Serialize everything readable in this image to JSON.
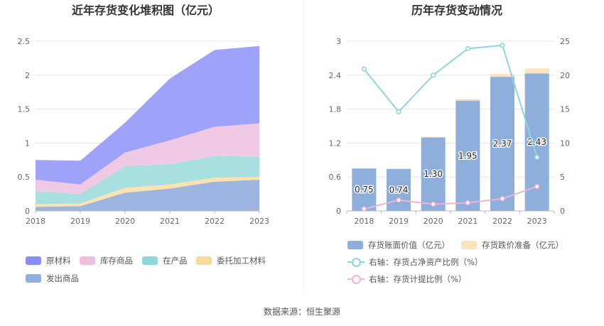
{
  "source": "数据来源：恒生聚源",
  "chart_data": [
    {
      "type": "area",
      "stacked": true,
      "title": "近年存货变化堆积图（亿元）",
      "categories": [
        "2018",
        "2019",
        "2020",
        "2021",
        "2022",
        "2023"
      ],
      "y_ticks": [
        "0",
        "0.5",
        "1",
        "1.5",
        "2",
        "2.5"
      ],
      "ylim": [
        0,
        2.5
      ],
      "grid": true,
      "legend_position": "bottom",
      "series": [
        {
          "name": "发出商品",
          "color": "#9bb5e0",
          "values": [
            0.06,
            0.07,
            0.27,
            0.33,
            0.43,
            0.46
          ]
        },
        {
          "name": "委托加工材料",
          "color": "#fde2b0",
          "values": [
            0.04,
            0.04,
            0.07,
            0.06,
            0.06,
            0.04
          ]
        },
        {
          "name": "在产品",
          "color": "#a8e0e0",
          "values": [
            0.19,
            0.14,
            0.32,
            0.3,
            0.32,
            0.3
          ]
        },
        {
          "name": "库存商品",
          "color": "#f0c9e4",
          "values": [
            0.17,
            0.14,
            0.2,
            0.35,
            0.43,
            0.49
          ]
        },
        {
          "name": "原材料",
          "color": "#9ea2f8",
          "values": [
            0.29,
            0.35,
            0.44,
            0.91,
            1.13,
            1.14
          ]
        }
      ],
      "legend_order": [
        "原材料",
        "库存商品",
        "在产品",
        "委托加工材料",
        "发出商品"
      ],
      "legend_colors": {
        "原材料": "#8a8cf7",
        "库存商品": "#f0bfe0",
        "在产品": "#8fd6d6",
        "委托加工材料": "#fcd99a",
        "发出商品": "#8fb0dc"
      }
    },
    {
      "type": "bar",
      "title": "历年存货变动情况",
      "categories": [
        "2018",
        "2019",
        "2020",
        "2021",
        "2022",
        "2023"
      ],
      "y_ticks": [
        "0",
        "0.6",
        "1.2",
        "1.8",
        "2.4",
        "3"
      ],
      "y2_ticks": [
        "0",
        "5",
        "10",
        "15",
        "20",
        "25"
      ],
      "ylim": [
        0,
        3
      ],
      "y2lim": [
        0,
        25
      ],
      "grid": true,
      "legend_position": "bottom",
      "bar_series": [
        {
          "name": "存货账面价值（亿元）",
          "color": "#8eaedc",
          "values": [
            0.75,
            0.74,
            1.3,
            1.95,
            2.37,
            2.43
          ],
          "labels": [
            "0.75",
            "0.74",
            "1.30",
            "1.95",
            "2.37",
            "2.43"
          ]
        },
        {
          "name": "存货跌价准备（亿元）",
          "color": "#fde3bd",
          "values": [
            0.0,
            0.01,
            0.01,
            0.03,
            0.05,
            0.09
          ]
        }
      ],
      "line_series": [
        {
          "name": "右轴：存货占净资产比例（%）",
          "color": "#8ed6dc",
          "values": [
            20.9,
            14.6,
            20.0,
            23.9,
            24.4,
            7.9
          ]
        },
        {
          "name": "右轴：存货计提比例（%）",
          "color": "#eeb3d6",
          "values": [
            0.3,
            1.6,
            1.0,
            1.2,
            1.8,
            3.6
          ]
        }
      ]
    }
  ]
}
